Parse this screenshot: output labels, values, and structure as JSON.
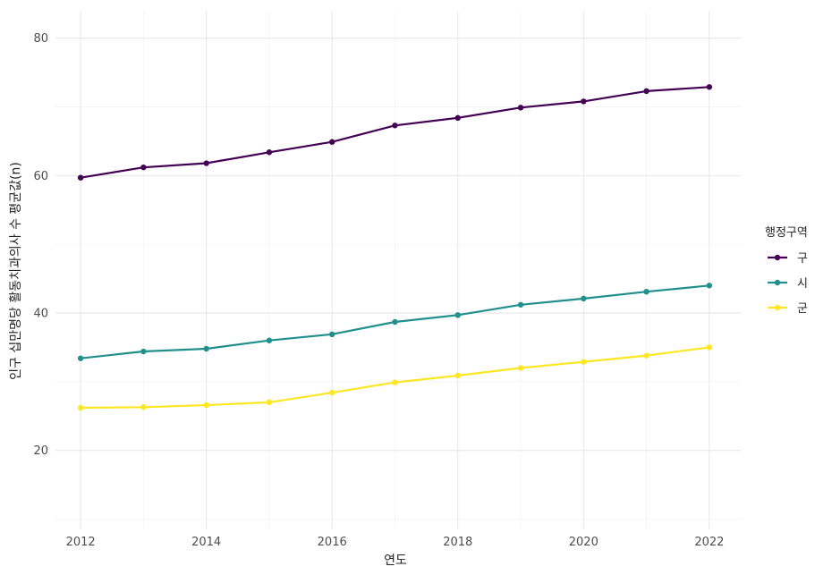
{
  "chart_data": {
    "type": "line",
    "xlabel": "연도",
    "ylabel": "인구 십만명당 활동치과의사 수 평균값(n)",
    "x": [
      2012,
      2013,
      2014,
      2015,
      2016,
      2017,
      2018,
      2019,
      2020,
      2021,
      2022
    ],
    "xlim": [
      2011.6,
      2022.5
    ],
    "ylim": [
      8.5,
      84
    ],
    "x_ticks": [
      "2012",
      "2014",
      "2016",
      "2018",
      "2020",
      "2022"
    ],
    "y_ticks": [
      "20",
      "40",
      "60",
      "80"
    ],
    "grid": true,
    "legend": {
      "title": "행정구역",
      "position": "right"
    },
    "series": [
      {
        "name": "구",
        "color": "#440154",
        "values": [
          59.7,
          61.2,
          61.8,
          63.4,
          64.9,
          67.3,
          68.4,
          69.9,
          70.8,
          72.3,
          72.9
        ]
      },
      {
        "name": "시",
        "color": "#21908C",
        "values": [
          33.4,
          34.4,
          34.8,
          36.0,
          36.9,
          38.7,
          39.7,
          41.2,
          42.1,
          43.1,
          44.0
        ]
      },
      {
        "name": "군",
        "color": "#FDE725",
        "values": [
          26.2,
          26.3,
          26.6,
          27.0,
          28.4,
          29.9,
          30.9,
          32.0,
          32.9,
          33.8,
          35.0
        ]
      }
    ]
  }
}
